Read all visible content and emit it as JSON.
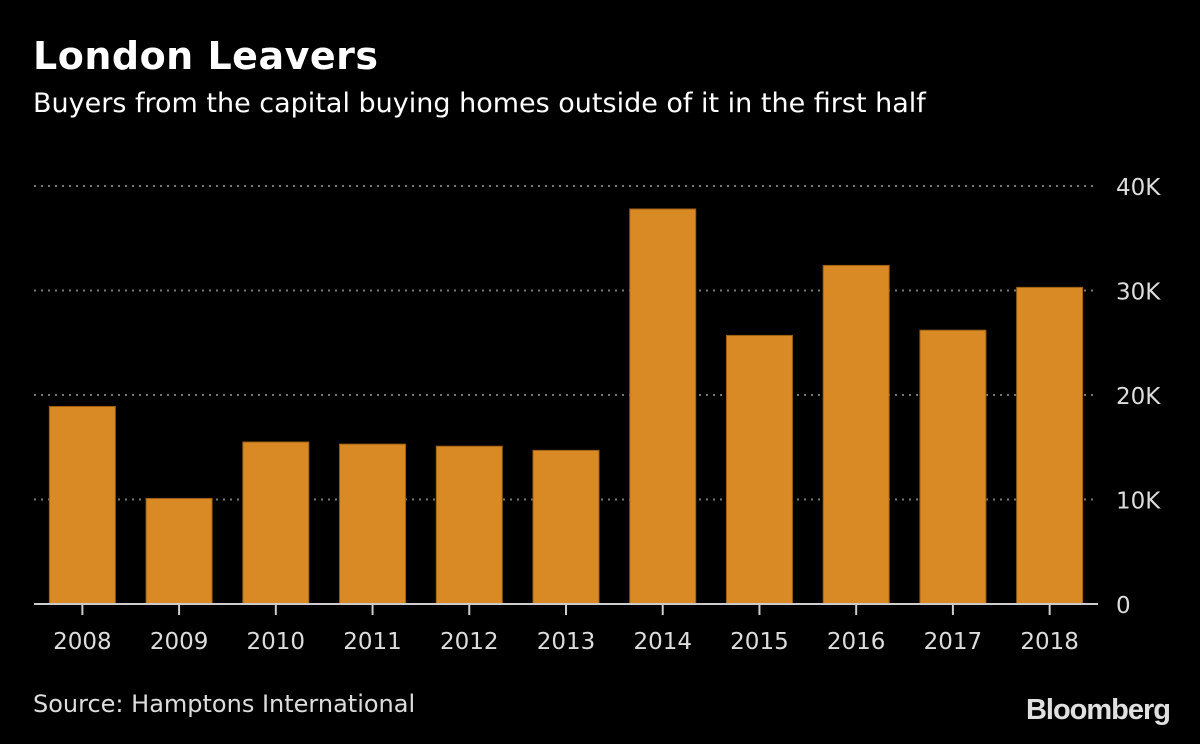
{
  "header": {
    "title": "London Leavers",
    "subtitle": "Buyers from the capital buying homes outside of it in the first half"
  },
  "footer": {
    "source": "Source: Hamptons International",
    "brand": "Bloomberg"
  },
  "colors": {
    "bar": "#DA8A24",
    "background": "#000000",
    "grid": "#777777",
    "axis": "#CCCCCC"
  },
  "chart_data": {
    "type": "bar",
    "title": "London Leavers",
    "subtitle": "Buyers from the capital buying homes outside of it in the first half",
    "xlabel": "",
    "ylabel": "",
    "categories": [
      "2008",
      "2009",
      "2010",
      "2011",
      "2012",
      "2013",
      "2014",
      "2015",
      "2016",
      "2017",
      "2018"
    ],
    "values": [
      18900,
      10100,
      15500,
      15300,
      15100,
      14700,
      37800,
      25700,
      32400,
      26200,
      30300
    ],
    "ylim": [
      0,
      40000
    ],
    "yticks": [
      0,
      10000,
      20000,
      30000,
      40000
    ],
    "ytick_labels": [
      "0",
      "10K",
      "20K",
      "30K",
      "40K"
    ],
    "y_axis_side": "right",
    "grid": true,
    "grid_style": "dotted",
    "legend": "none",
    "source": "Source: Hamptons International"
  }
}
